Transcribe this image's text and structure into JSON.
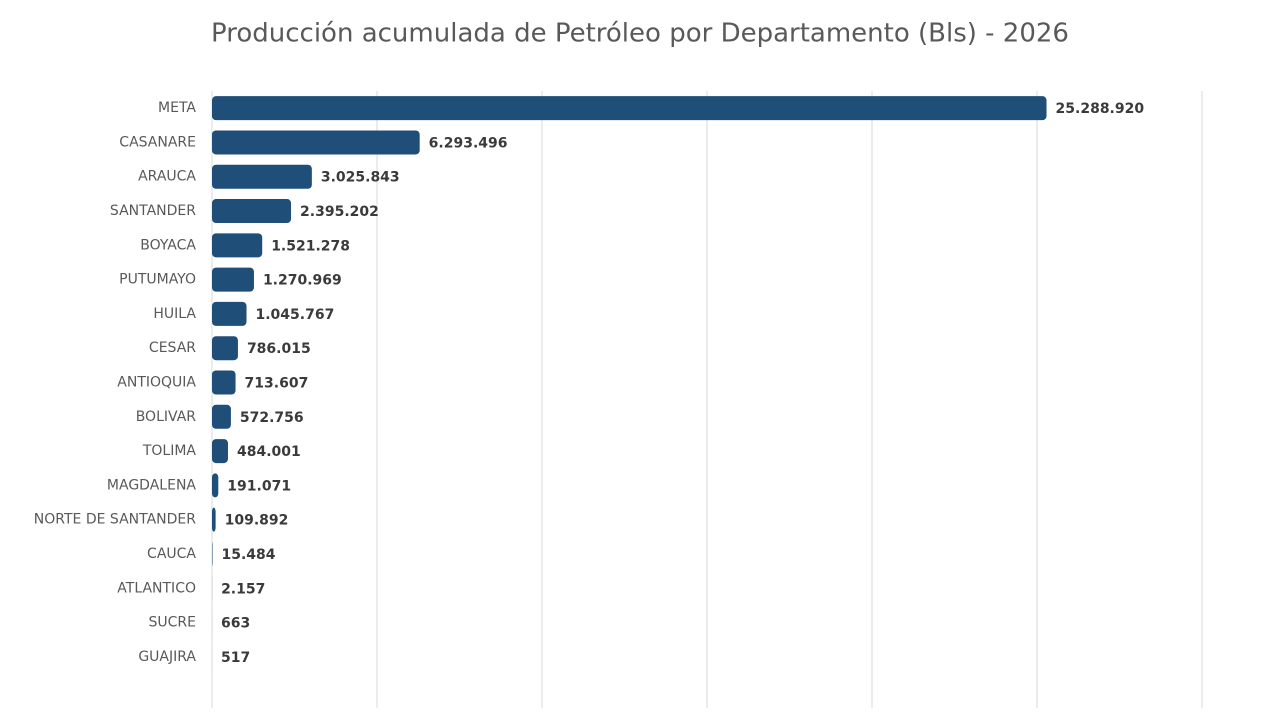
{
  "chart_data": {
    "type": "bar",
    "orientation": "horizontal",
    "title": "Producción acumulada de Petróleo por Departamento (Bls) - 2026",
    "categories": [
      "META",
      "CASANARE",
      "ARAUCA",
      "SANTANDER",
      "BOYACA",
      "PUTUMAYO",
      "HUILA",
      "CESAR",
      "ANTIOQUIA",
      "BOLIVAR",
      "TOLIMA",
      "MAGDALENA",
      "NORTE DE SANTANDER",
      "CAUCA",
      "ATLANTICO",
      "SUCRE",
      "GUAJIRA"
    ],
    "values": [
      25288920,
      6293496,
      3025843,
      2395202,
      1521278,
      1270969,
      1045767,
      786015,
      713607,
      572756,
      484001,
      191071,
      109892,
      15484,
      2157,
      663,
      517
    ],
    "value_labels": [
      "25.288.920",
      "6.293.496",
      "3.025.843",
      "2.395.202",
      "1.521.278",
      "1.270.969",
      "1.045.767",
      "786.015",
      "713.607",
      "572.756",
      "484.001",
      "191.071",
      "109.892",
      "15.484",
      "2.157",
      "663",
      "517"
    ],
    "color": "#1f4e79",
    "xlim": [
      0,
      30000000
    ],
    "xticks": [
      0,
      5000000,
      10000000,
      15000000,
      20000000,
      25000000,
      30000000
    ],
    "grid": true
  }
}
